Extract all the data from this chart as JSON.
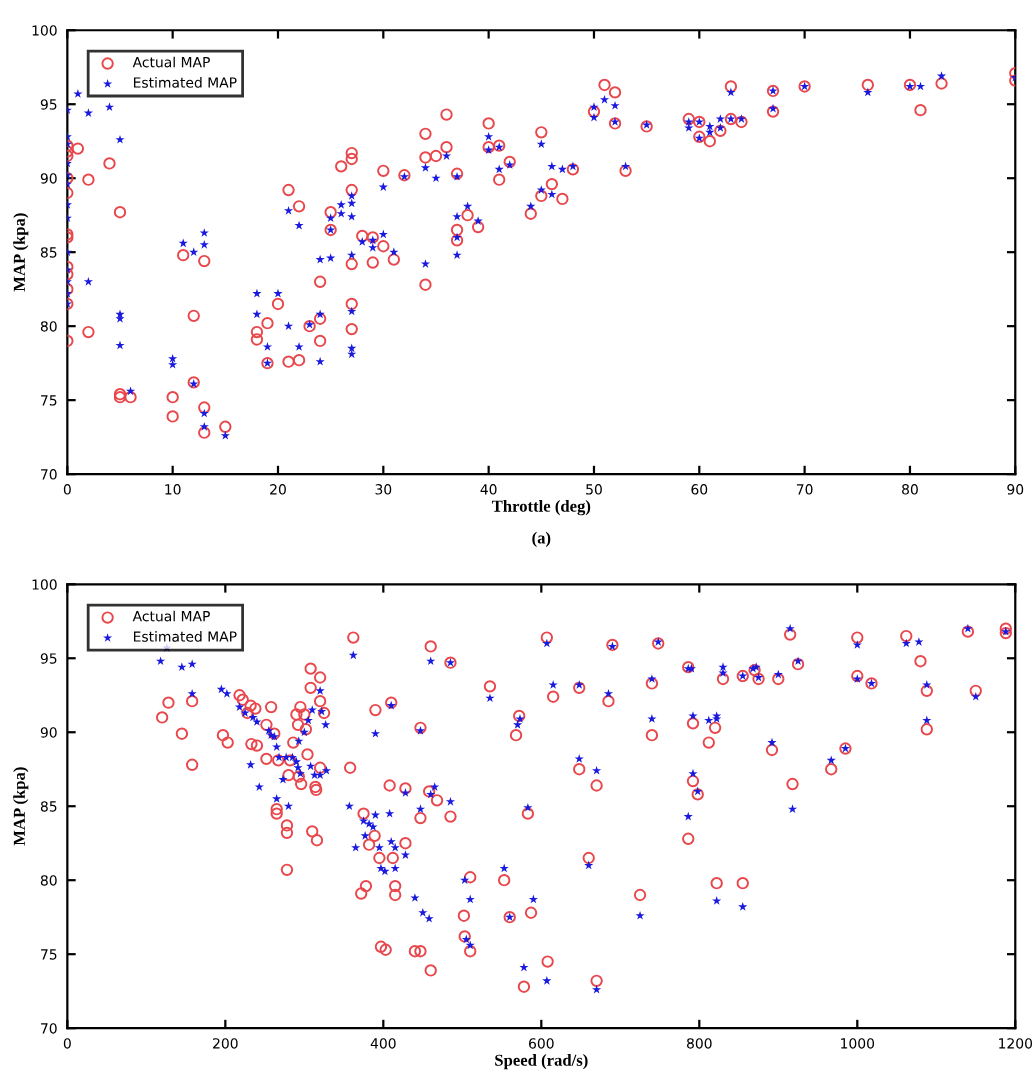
{
  "chart_data": [
    {
      "type": "scatter",
      "xlabel": "Throttle (deg)",
      "ylabel": "MAP (kpa)",
      "annotations": [
        "(a)"
      ],
      "xlim": [
        0,
        90
      ],
      "ylim": [
        70,
        100
      ],
      "xticks": [
        0,
        10,
        20,
        30,
        40,
        50,
        60,
        70,
        80,
        90
      ],
      "yticks": [
        70,
        75,
        80,
        85,
        90,
        95,
        100
      ],
      "grid": false,
      "legend": "top left",
      "series": [
        {
          "name": "Actual MAP",
          "color": "#e8474c",
          "marker": "circle",
          "x": [
            0,
            0,
            0,
            0,
            0,
            0,
            0,
            0,
            0,
            0,
            0,
            0,
            1,
            2,
            2,
            4,
            5,
            5,
            5,
            6,
            10,
            10,
            11,
            12,
            12,
            13,
            13,
            13,
            15,
            18,
            18,
            19,
            19,
            20,
            21,
            21,
            22,
            22,
            23,
            24,
            24,
            24,
            25,
            25,
            26,
            27,
            27,
            27,
            27,
            27,
            27,
            28,
            29,
            29,
            30,
            30,
            31,
            32,
            34,
            34,
            34,
            35,
            36,
            36,
            37,
            37,
            37,
            38,
            39,
            40,
            40,
            41,
            41,
            42,
            44,
            45,
            45,
            46,
            47,
            48,
            50,
            51,
            52,
            52,
            53,
            55,
            59,
            60,
            60,
            61,
            62,
            63,
            63,
            64,
            67,
            67,
            70,
            76,
            80,
            81,
            83,
            90,
            90
          ],
          "values": [
            92.2,
            91.8,
            91.5,
            90,
            89,
            86.2,
            86,
            84,
            83.5,
            82.5,
            81.5,
            79,
            92,
            89.9,
            79.6,
            91,
            87.7,
            75.4,
            75.2,
            75.2,
            75.2,
            73.9,
            84.8,
            80.7,
            76.2,
            84.4,
            74.5,
            72.8,
            73.2,
            79.6,
            79.1,
            80.2,
            77.5,
            81.5,
            89.2,
            77.6,
            88.1,
            77.7,
            80,
            83,
            79,
            80.5,
            87.7,
            86.5,
            90.8,
            91.7,
            91.3,
            89.2,
            84.2,
            81.5,
            79.8,
            86.1,
            86,
            84.3,
            90.5,
            85.4,
            84.5,
            90.2,
            93,
            91.4,
            82.8,
            91.5,
            94.3,
            92.1,
            90.3,
            86.5,
            85.8,
            87.5,
            86.7,
            93.7,
            92.1,
            92.2,
            89.9,
            91.1,
            87.6,
            93.1,
            88.8,
            89.6,
            88.6,
            90.6,
            94.5,
            96.3,
            95.8,
            93.7,
            90.5,
            93.5,
            94,
            93.8,
            92.8,
            92.5,
            93.2,
            96.2,
            94,
            93.8,
            95.9,
            94.5,
            96.2,
            96.3,
            96.3,
            94.6,
            96.4,
            97.1,
            96.6
          ]
        },
        {
          "name": "Estimated MAP",
          "color": "#1a1adf",
          "marker": "star",
          "x": [
            0,
            0,
            0,
            0,
            0,
            0,
            0,
            0,
            0,
            0,
            0,
            0,
            0,
            1,
            2,
            2,
            4,
            5,
            5,
            5,
            5,
            6,
            10,
            10,
            11,
            12,
            12,
            13,
            13,
            13,
            13,
            15,
            18,
            18,
            19,
            19,
            20,
            21,
            21,
            22,
            22,
            23,
            24,
            24,
            24,
            25,
            25,
            25,
            26,
            26,
            27,
            27,
            27,
            27,
            27,
            27,
            27,
            28,
            29,
            29,
            30,
            30,
            31,
            32,
            34,
            34,
            35,
            36,
            37,
            37,
            37,
            37,
            38,
            39,
            40,
            40,
            41,
            41,
            42,
            44,
            45,
            45,
            46,
            46,
            47,
            48,
            50,
            50,
            51,
            52,
            52,
            53,
            55,
            59,
            59,
            60,
            60,
            61,
            61,
            62,
            62,
            63,
            63,
            64,
            67,
            67,
            70,
            76,
            80,
            81,
            83,
            90
          ],
          "values": [
            94.6,
            92.8,
            92.3,
            91,
            90.2,
            89.6,
            88.2,
            87.3,
            85,
            83.8,
            83,
            82.2,
            81.5,
            95.7,
            94.4,
            83,
            94.8,
            92.6,
            80.8,
            80.5,
            78.7,
            75.6,
            77.8,
            77.4,
            85.6,
            85,
            76.1,
            86.3,
            85.5,
            74.1,
            73.2,
            72.6,
            82.2,
            80.8,
            78.6,
            77.5,
            82.2,
            87.8,
            80,
            86.8,
            78.6,
            80.1,
            84.5,
            80.8,
            77.6,
            87.3,
            86.5,
            84.6,
            88.2,
            87.6,
            88.8,
            88.3,
            87.4,
            84.8,
            81,
            78.5,
            78.1,
            85.7,
            85.8,
            85.3,
            89.4,
            86.2,
            85,
            90.1,
            90.7,
            84.2,
            90,
            91.5,
            90.1,
            87.4,
            86,
            84.8,
            88.1,
            87.1,
            92.8,
            91.9,
            92.1,
            90.6,
            90.9,
            88.1,
            92.3,
            89.2,
            90.8,
            88.9,
            90.6,
            90.8,
            94.8,
            94.1,
            95.3,
            94.9,
            93.8,
            90.8,
            93.6,
            93.8,
            93.4,
            93.8,
            92.7,
            93.5,
            93.1,
            94,
            93.4,
            95.8,
            94,
            94,
            95.9,
            94.7,
            96.2,
            95.8,
            96.2,
            96.2,
            96.9,
            96.8
          ]
        }
      ]
    },
    {
      "type": "scatter",
      "xlabel": "Speed (rad/s)",
      "ylabel": "MAP (kpa)",
      "xlim": [
        0,
        1200
      ],
      "ylim": [
        70,
        100
      ],
      "xticks": [
        0,
        200,
        400,
        600,
        800,
        1000,
        1200
      ],
      "yticks": [
        70,
        75,
        80,
        85,
        90,
        95,
        100
      ],
      "grid": false,
      "legend": "top left",
      "series": [
        {
          "name": "Actual MAP",
          "color": "#e8474c",
          "marker": "circle",
          "x": [
            120,
            128,
            145,
            158,
            158,
            197,
            203,
            218,
            222,
            232,
            228,
            238,
            233,
            240,
            252,
            252,
            258,
            262,
            267,
            265,
            265,
            278,
            278,
            278,
            280,
            282,
            286,
            290,
            292,
            293,
            295,
            296,
            300,
            302,
            304,
            308,
            308,
            310,
            314,
            315,
            316,
            320,
            320,
            320,
            325,
            358,
            362,
            375,
            378,
            372,
            382,
            389,
            390,
            395,
            397,
            403,
            408,
            410,
            412,
            415,
            415,
            428,
            428,
            440,
            447,
            447,
            447,
            458,
            460,
            460,
            468,
            485,
            485,
            502,
            503,
            510,
            510,
            535,
            553,
            560,
            568,
            572,
            583,
            578,
            587,
            607,
            615,
            608,
            648,
            648,
            660,
            670,
            685,
            670,
            690,
            725,
            740,
            740,
            748,
            786,
            786,
            792,
            792,
            798,
            812,
            820,
            822,
            830,
            855,
            855,
            870,
            875,
            900,
            892,
            915,
            918,
            925,
            967,
            985,
            1000,
            1000,
            1018,
            1062,
            1080,
            1088,
            1088,
            1140,
            1150,
            1188,
            1188
          ],
          "values": [
            91,
            92,
            89.9,
            92.1,
            87.8,
            89.8,
            89.3,
            92.5,
            92.2,
            91.8,
            91.3,
            91.6,
            89.2,
            89.1,
            90.5,
            88.2,
            91.7,
            89.9,
            88.1,
            84.8,
            84.5,
            83.7,
            83.2,
            80.7,
            87.1,
            88.1,
            89.3,
            91.2,
            90.5,
            87,
            91.7,
            86.5,
            91.2,
            90.2,
            88.5,
            94.3,
            93,
            83.3,
            86.3,
            86.1,
            82.7,
            93.7,
            92.1,
            87.6,
            91.3,
            87.6,
            96.4,
            84.5,
            79.6,
            79.1,
            82.4,
            83,
            91.5,
            81.5,
            75.5,
            75.3,
            86.4,
            92,
            81.5,
            79.6,
            79,
            86.2,
            82.5,
            75.2,
            75.2,
            90.3,
            84.2,
            86,
            95.8,
            73.9,
            85.4,
            94.7,
            84.3,
            77.6,
            76.2,
            80.2,
            75.2,
            93.1,
            80,
            77.5,
            89.8,
            91.1,
            84.5,
            72.8,
            77.8,
            96.4,
            92.4,
            74.5,
            93,
            87.5,
            81.5,
            86.4,
            92.1,
            73.2,
            95.9,
            79,
            89.8,
            93.3,
            96,
            82.8,
            94.4,
            86.7,
            90.6,
            85.8,
            89.3,
            90.3,
            79.8,
            93.6,
            93.8,
            79.8,
            94.2,
            93.6,
            93.6,
            88.8,
            96.6,
            86.5,
            94.6,
            87.5,
            88.9,
            96.4,
            93.8,
            93.3,
            96.5,
            94.8,
            92.8,
            90.2,
            96.8,
            92.8,
            97,
            96.7
          ]
        },
        {
          "name": "Estimated MAP",
          "color": "#1a1adf",
          "marker": "star",
          "x": [
            118,
            126,
            145,
            158,
            158,
            195,
            202,
            218,
            225,
            232,
            235,
            240,
            243,
            255,
            258,
            262,
            265,
            265,
            268,
            273,
            277,
            280,
            285,
            290,
            292,
            293,
            295,
            300,
            305,
            308,
            310,
            313,
            320,
            320,
            322,
            327,
            328,
            357,
            362,
            365,
            375,
            377,
            382,
            387,
            390,
            390,
            395,
            397,
            402,
            408,
            410,
            410,
            415,
            415,
            428,
            428,
            440,
            447,
            447,
            450,
            458,
            460,
            460,
            465,
            485,
            485,
            503,
            505,
            510,
            510,
            535,
            553,
            560,
            570,
            573,
            578,
            583,
            590,
            607,
            607,
            615,
            648,
            648,
            660,
            670,
            685,
            670,
            690,
            725,
            740,
            740,
            748,
            786,
            786,
            790,
            792,
            792,
            798,
            812,
            822,
            822,
            822,
            830,
            830,
            855,
            855,
            868,
            872,
            875,
            900,
            892,
            915,
            918,
            925,
            967,
            985,
            1000,
            1000,
            1018,
            1062,
            1078,
            1088,
            1088,
            1150,
            1140,
            1188
          ],
          "values": [
            94.8,
            95.7,
            94.4,
            94.6,
            92.6,
            92.9,
            92.6,
            91.7,
            91.3,
            87.8,
            91,
            90.7,
            86.3,
            90.1,
            89.8,
            89.7,
            85.5,
            89,
            88.3,
            86.8,
            88.3,
            85,
            88.3,
            88,
            87.6,
            89.4,
            87.2,
            90,
            90.8,
            87.7,
            91.5,
            87.1,
            92.8,
            87.1,
            91.4,
            90.5,
            87.4,
            85,
            95.2,
            82.2,
            84,
            83,
            83.8,
            83.6,
            89.9,
            84.4,
            82.2,
            80.8,
            80.6,
            84.5,
            91.8,
            82.6,
            80.8,
            82.2,
            85.9,
            81.7,
            78.8,
            84.8,
            90.1,
            77.8,
            77.4,
            94.8,
            85.8,
            86.3,
            94.7,
            85.3,
            80,
            76,
            78.7,
            75.6,
            92.3,
            80.8,
            77.5,
            90.5,
            90.9,
            74.1,
            84.9,
            78.7,
            96,
            73.2,
            93.2,
            93.2,
            88.2,
            81,
            87.4,
            92.6,
            72.6,
            95.8,
            77.6,
            93.6,
            90.9,
            96.1,
            84.3,
            94.3,
            94.3,
            87.2,
            91.1,
            86,
            90.8,
            90.9,
            91.1,
            78.6,
            94.4,
            94,
            93.8,
            78.2,
            94.3,
            94.4,
            93.7,
            93.9,
            89.3,
            97,
            84.8,
            94.8,
            88.1,
            88.9,
            95.9,
            93.6,
            93.3,
            96,
            96.1,
            93.2,
            90.8,
            92.4,
            97,
            96.8
          ]
        }
      ]
    }
  ]
}
